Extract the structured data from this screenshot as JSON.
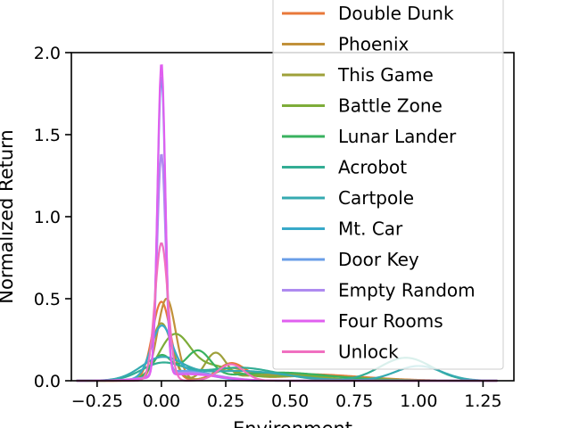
{
  "chart_data": {
    "type": "line",
    "xlabel": "Environment",
    "ylabel": "Normalized Return",
    "xlim": [
      -0.35,
      1.37
    ],
    "ylim": [
      0,
      2.0
    ],
    "x_ticks": [
      "−0.25",
      "0.00",
      "0.25",
      "0.50",
      "0.75",
      "1.00",
      "1.25"
    ],
    "y_ticks": [
      "0.0",
      "0.5",
      "1.0",
      "1.5",
      "2.0"
    ],
    "grid": false,
    "legend_position": "top-right",
    "series": [
      {
        "name": "Double Dunk",
        "color": "#e8783a",
        "components": [
          [
            0.0,
            0.035,
            0.48
          ],
          [
            0.27,
            0.05,
            0.09
          ],
          [
            0.55,
            0.22,
            0.04
          ]
        ]
      },
      {
        "name": "Phoenix",
        "color": "#c1913a",
        "components": [
          [
            0.02,
            0.035,
            0.5
          ],
          [
            0.27,
            0.06,
            0.07
          ],
          [
            0.6,
            0.2,
            0.03
          ]
        ]
      },
      {
        "name": "This Game",
        "color": "#9ea03a",
        "components": [
          [
            0.0,
            0.04,
            0.35
          ],
          [
            0.21,
            0.04,
            0.16
          ],
          [
            0.45,
            0.15,
            0.04
          ]
        ]
      },
      {
        "name": "Battle Zone",
        "color": "#7dac39",
        "components": [
          [
            0.05,
            0.06,
            0.27
          ],
          [
            0.2,
            0.08,
            0.08
          ],
          [
            0.55,
            0.2,
            0.03
          ]
        ]
      },
      {
        "name": "Lunar Lander",
        "color": "#39b25f",
        "components": [
          [
            0.0,
            0.04,
            0.15
          ],
          [
            0.14,
            0.05,
            0.17
          ],
          [
            0.45,
            0.2,
            0.05
          ]
        ]
      },
      {
        "name": "Acrobot",
        "color": "#33ad94",
        "components": [
          [
            0.0,
            0.08,
            0.1
          ],
          [
            0.3,
            0.15,
            0.08
          ],
          [
            0.95,
            0.1,
            0.14
          ]
        ]
      },
      {
        "name": "Cartpole",
        "color": "#35aab0",
        "components": [
          [
            0.0,
            0.08,
            0.13
          ],
          [
            0.3,
            0.18,
            0.06
          ],
          [
            1.0,
            0.09,
            0.09
          ]
        ]
      },
      {
        "name": "Mt. Car",
        "color": "#38a9c9",
        "components": [
          [
            0.0,
            0.04,
            0.3
          ],
          [
            0.1,
            0.1,
            0.06
          ]
        ]
      },
      {
        "name": "Door Key",
        "color": "#6a9ee8",
        "components": [
          [
            0.0,
            0.015,
            1.82
          ],
          [
            0.08,
            0.1,
            0.06
          ]
        ]
      },
      {
        "name": "Empty Random",
        "color": "#ae8af0",
        "components": [
          [
            0.0,
            0.016,
            1.35
          ],
          [
            0.1,
            0.12,
            0.05
          ]
        ]
      },
      {
        "name": "Four Rooms",
        "color": "#e05ff0",
        "components": [
          [
            0.0,
            0.015,
            1.91
          ],
          [
            0.1,
            0.12,
            0.04
          ]
        ]
      },
      {
        "name": "Unlock",
        "color": "#f070c0",
        "components": [
          [
            0.0,
            0.025,
            0.84
          ],
          [
            0.27,
            0.05,
            0.1
          ]
        ]
      }
    ]
  }
}
